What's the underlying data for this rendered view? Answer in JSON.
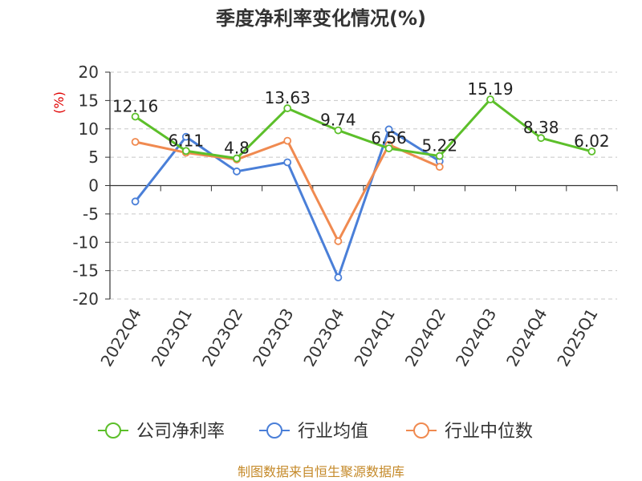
{
  "chart_data": {
    "type": "line",
    "title": "季度净利率变化情况(%)",
    "ylabel": "(%)",
    "ylim": [
      -20,
      20
    ],
    "yticks": [
      20,
      15,
      10,
      5,
      0,
      -5,
      -10,
      -15,
      -20
    ],
    "categories": [
      "2022Q4",
      "2023Q1",
      "2023Q2",
      "2023Q3",
      "2023Q4",
      "2024Q1",
      "2024Q2",
      "2024Q3",
      "2024Q4",
      "2025Q1"
    ],
    "grid": true,
    "legend_position": "bottom",
    "series": [
      {
        "name": "公司净利率",
        "color": "#5cbf2a",
        "values": [
          12.16,
          6.11,
          4.8,
          13.63,
          9.74,
          6.56,
          5.22,
          15.19,
          8.38,
          6.02
        ],
        "labels": [
          "12.16",
          "6.11",
          "4.8",
          "13.63",
          "9.74",
          "6.56",
          "5.22",
          "15.19",
          "8.38",
          "6.02"
        ]
      },
      {
        "name": "行业均值",
        "color": "#4a7fd8",
        "values": [
          -2.8,
          8.6,
          2.5,
          4.1,
          -16.2,
          9.9,
          4.3,
          null,
          null,
          null
        ]
      },
      {
        "name": "行业中位数",
        "color": "#f08a50",
        "values": [
          7.7,
          5.8,
          4.6,
          7.9,
          -9.8,
          7.2,
          3.3,
          null,
          null,
          null
        ]
      }
    ]
  },
  "source": "制图数据来自恒生聚源数据库"
}
